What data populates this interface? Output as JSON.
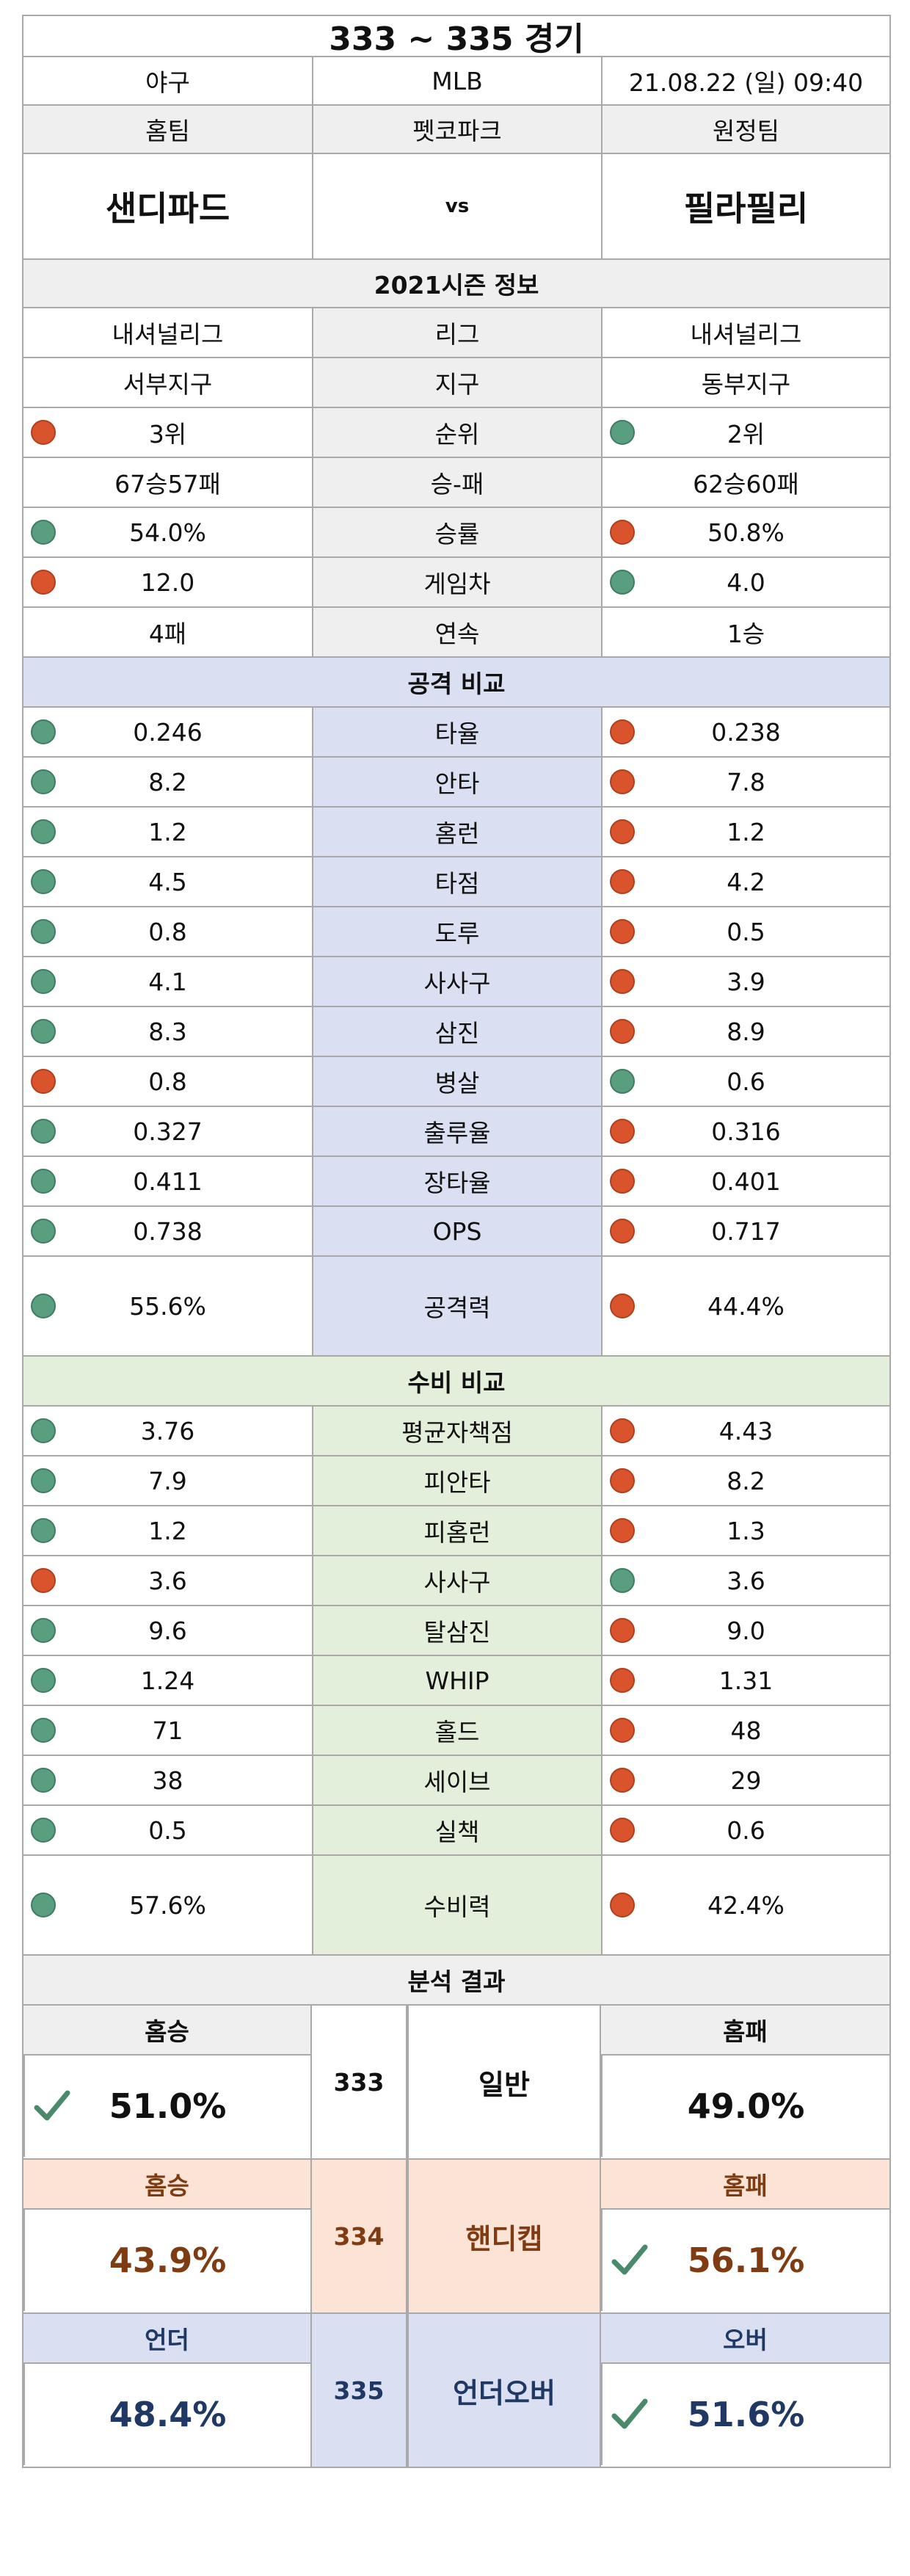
{
  "title": "333 ~ 335 경기",
  "info": {
    "sport": "야구",
    "league": "MLB",
    "datetime": "21.08.22 (일) 09:40"
  },
  "teams_header": {
    "home": "홈팀",
    "stadium": "펫코파크",
    "away": "원정팀"
  },
  "teams": {
    "home": "샌디파드",
    "vs": "vs",
    "away": "필라필리"
  },
  "season_title": "2021시즌 정보",
  "season_rows": [
    {
      "home": "내셔널리그",
      "label": "리그",
      "away": "내셔널리그",
      "hd": "",
      "ad": ""
    },
    {
      "home": "서부지구",
      "label": "지구",
      "away": "동부지구",
      "hd": "",
      "ad": ""
    },
    {
      "home": "3위",
      "label": "순위",
      "away": "2위",
      "hd": "r",
      "ad": "g"
    },
    {
      "home": "67승57패",
      "label": "승-패",
      "away": "62승60패",
      "hd": "",
      "ad": ""
    },
    {
      "home": "54.0%",
      "label": "승률",
      "away": "50.8%",
      "hd": "g",
      "ad": "r"
    },
    {
      "home": "12.0",
      "label": "게임차",
      "away": "4.0",
      "hd": "r",
      "ad": "g"
    },
    {
      "home": "4패",
      "label": "연속",
      "away": "1승",
      "hd": "",
      "ad": ""
    }
  ],
  "attack_title": "공격 비교",
  "attack_rows": [
    {
      "home": "0.246",
      "label": "타율",
      "away": "0.238",
      "hd": "g",
      "ad": "r"
    },
    {
      "home": "8.2",
      "label": "안타",
      "away": "7.8",
      "hd": "g",
      "ad": "r"
    },
    {
      "home": "1.2",
      "label": "홈런",
      "away": "1.2",
      "hd": "g",
      "ad": "r"
    },
    {
      "home": "4.5",
      "label": "타점",
      "away": "4.2",
      "hd": "g",
      "ad": "r"
    },
    {
      "home": "0.8",
      "label": "도루",
      "away": "0.5",
      "hd": "g",
      "ad": "r"
    },
    {
      "home": "4.1",
      "label": "사사구",
      "away": "3.9",
      "hd": "g",
      "ad": "r"
    },
    {
      "home": "8.3",
      "label": "삼진",
      "away": "8.9",
      "hd": "g",
      "ad": "r"
    },
    {
      "home": "0.8",
      "label": "병살",
      "away": "0.6",
      "hd": "r",
      "ad": "g"
    },
    {
      "home": "0.327",
      "label": "출루율",
      "away": "0.316",
      "hd": "g",
      "ad": "r"
    },
    {
      "home": "0.411",
      "label": "장타율",
      "away": "0.401",
      "hd": "g",
      "ad": "r"
    },
    {
      "home": "0.738",
      "label": "OPS",
      "away": "0.717",
      "hd": "g",
      "ad": "r"
    }
  ],
  "attack_total": {
    "home": "55.6%",
    "label": "공격력",
    "away": "44.4%",
    "hd": "g",
    "ad": "r"
  },
  "defense_title": "수비 비교",
  "defense_rows": [
    {
      "home": "3.76",
      "label": "평균자책점",
      "away": "4.43",
      "hd": "g",
      "ad": "r"
    },
    {
      "home": "7.9",
      "label": "피안타",
      "away": "8.2",
      "hd": "g",
      "ad": "r"
    },
    {
      "home": "1.2",
      "label": "피홈런",
      "away": "1.3",
      "hd": "g",
      "ad": "r"
    },
    {
      "home": "3.6",
      "label": "사사구",
      "away": "3.6",
      "hd": "r",
      "ad": "g"
    },
    {
      "home": "9.6",
      "label": "탈삼진",
      "away": "9.0",
      "hd": "g",
      "ad": "r"
    },
    {
      "home": "1.24",
      "label": "WHIP",
      "away": "1.31",
      "hd": "g",
      "ad": "r"
    },
    {
      "home": "71",
      "label": "홀드",
      "away": "48",
      "hd": "g",
      "ad": "r"
    },
    {
      "home": "38",
      "label": "세이브",
      "away": "29",
      "hd": "g",
      "ad": "r"
    },
    {
      "home": "0.5",
      "label": "실책",
      "away": "0.6",
      "hd": "g",
      "ad": "r"
    }
  ],
  "defense_total": {
    "home": "57.6%",
    "label": "수비력",
    "away": "42.4%",
    "hd": "g",
    "ad": "r"
  },
  "result_title": "분석 결과",
  "results": {
    "general": {
      "left_label": "홈승",
      "left_value": "51.0%",
      "game": "333",
      "type": "일반",
      "right_label": "홈패",
      "right_value": "49.0%",
      "check": "left"
    },
    "handicap": {
      "left_label": "홈승",
      "left_value": "43.9%",
      "game": "334",
      "type": "핸디캡",
      "right_label": "홈패",
      "right_value": "56.1%",
      "check": "right"
    },
    "underover": {
      "left_label": "언더",
      "left_value": "48.4%",
      "game": "335",
      "type": "언더오버",
      "right_label": "오버",
      "right_value": "51.6%",
      "check": "right"
    }
  },
  "colors": {
    "green_dot": "#5a9e80",
    "red_dot": "#d9542c",
    "check": "#4a8a6c",
    "blue_panel": "#dae0f2",
    "green_panel": "#e3efda",
    "orange_panel": "#fbe3d6"
  }
}
